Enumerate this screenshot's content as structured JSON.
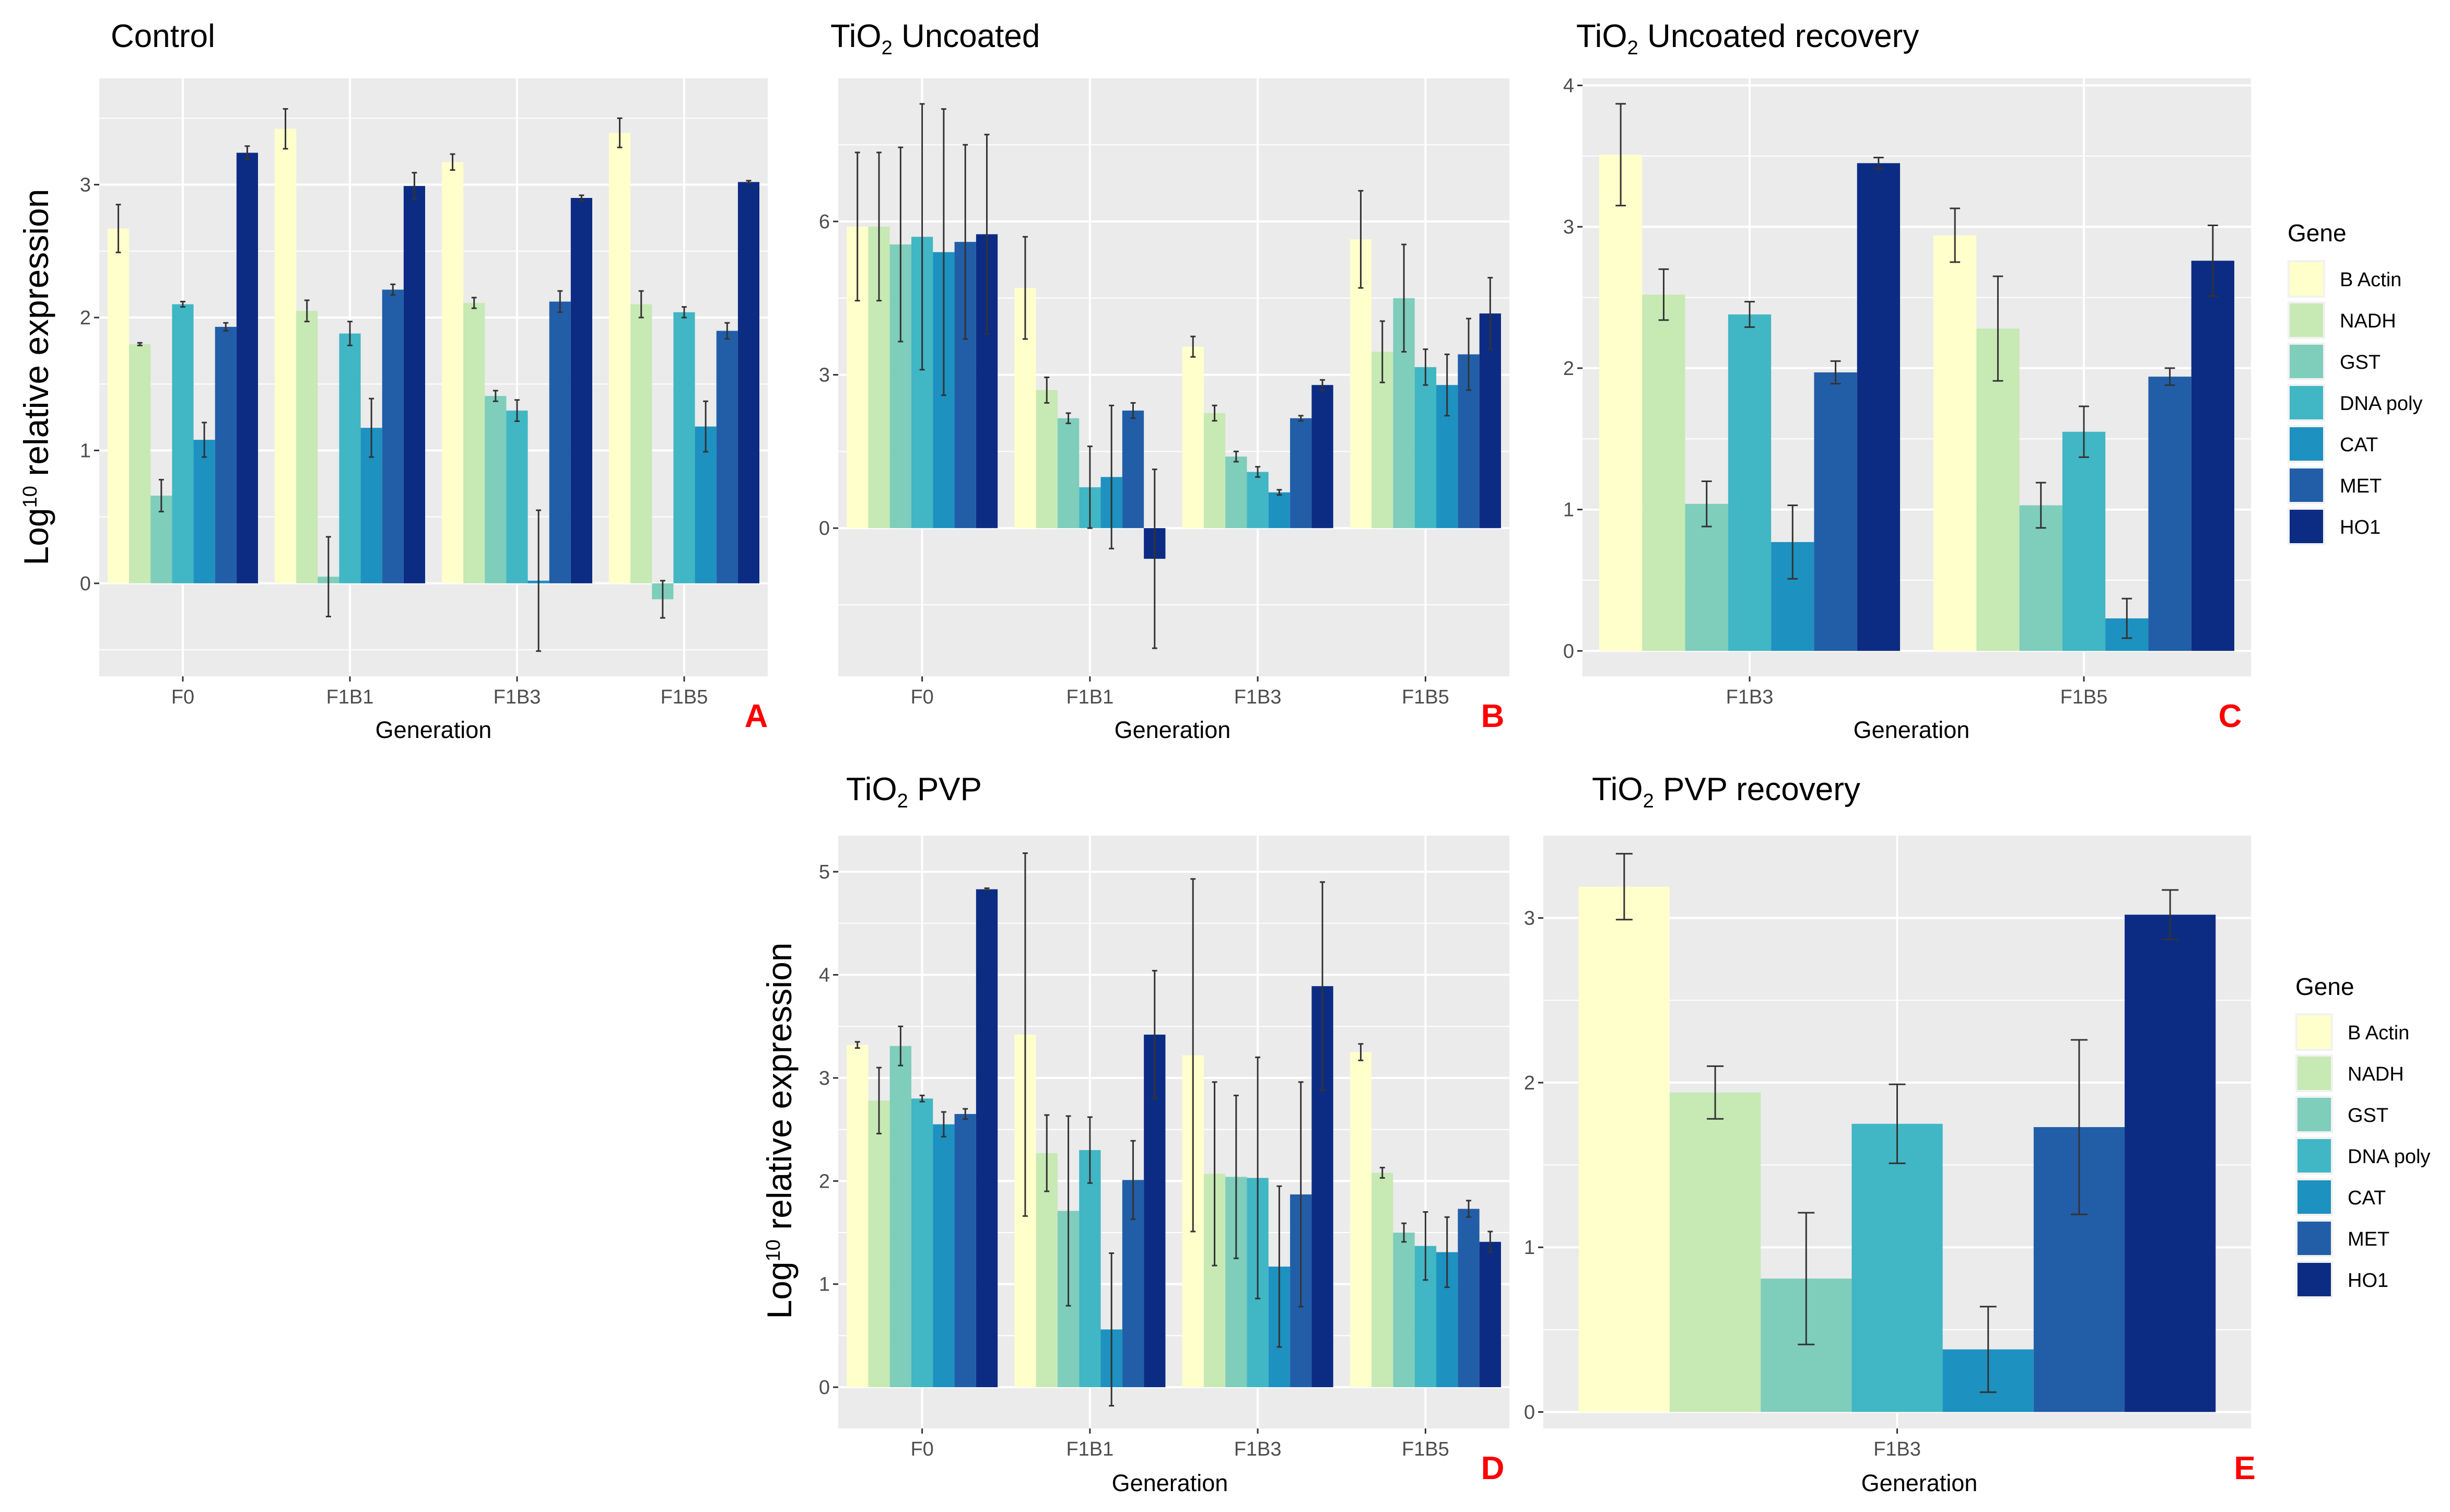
{
  "genes": [
    "B Actin",
    "NADH",
    "GST",
    "DNA poly",
    "CAT",
    "MET",
    "HO1"
  ],
  "gene_colors": [
    "#ffffcc",
    "#c7e9b4",
    "#7fcdbb",
    "#41b6c4",
    "#1d91c0",
    "#225ea8",
    "#0c2c84"
  ],
  "legend_title": "Gene",
  "chart_data": [
    {
      "id": "A",
      "type": "bar",
      "letter": "A",
      "title_parts": [
        "Control"
      ],
      "xlabel": "Generation",
      "ylabel_parts": [
        "Log",
        "10",
        " relative expression"
      ],
      "categories": [
        "F0",
        "F1B1",
        "F1B3",
        "F1B5"
      ],
      "ylim": [
        -0.7,
        3.8
      ],
      "yticks": [
        0,
        1,
        2,
        3
      ],
      "series": [
        {
          "name": "B Actin",
          "values": [
            2.67,
            3.42,
            3.17,
            3.39
          ],
          "errors": [
            0.18,
            0.15,
            0.06,
            0.11
          ]
        },
        {
          "name": "NADH",
          "values": [
            1.8,
            2.05,
            2.11,
            2.1
          ],
          "errors": [
            0.01,
            0.08,
            0.04,
            0.1
          ]
        },
        {
          "name": "GST",
          "values": [
            0.66,
            0.05,
            1.41,
            -0.12
          ],
          "errors": [
            0.12,
            0.3,
            0.04,
            0.14
          ]
        },
        {
          "name": "DNA poly",
          "values": [
            2.1,
            1.88,
            1.3,
            2.04
          ],
          "errors": [
            0.02,
            0.09,
            0.08,
            0.04
          ]
        },
        {
          "name": "CAT",
          "values": [
            1.08,
            1.17,
            0.02,
            1.18
          ],
          "errors": [
            0.13,
            0.22,
            0.53,
            0.19
          ]
        },
        {
          "name": "MET",
          "values": [
            1.93,
            2.21,
            2.12,
            1.9
          ],
          "errors": [
            0.03,
            0.04,
            0.08,
            0.06
          ]
        },
        {
          "name": "HO1",
          "values": [
            3.24,
            2.99,
            2.9,
            3.02
          ],
          "errors": [
            0.05,
            0.1,
            0.02,
            0.01
          ]
        }
      ]
    },
    {
      "id": "B",
      "type": "bar",
      "letter": "B",
      "title_parts": [
        "TiO",
        "2",
        " Uncoated"
      ],
      "xlabel": "Generation",
      "categories": [
        "F0",
        "F1B1",
        "F1B3",
        "F1B5"
      ],
      "ylim": [
        -2.9,
        8.8
      ],
      "yticks": [
        0,
        3,
        6
      ],
      "series": [
        {
          "name": "B Actin",
          "values": [
            5.9,
            4.7,
            3.55,
            5.65
          ],
          "errors": [
            1.45,
            1.0,
            0.2,
            0.95
          ]
        },
        {
          "name": "NADH",
          "values": [
            5.9,
            2.7,
            2.25,
            3.45
          ],
          "errors": [
            1.45,
            0.25,
            0.15,
            0.6
          ]
        },
        {
          "name": "GST",
          "values": [
            5.55,
            2.15,
            1.4,
            4.5
          ],
          "errors": [
            1.9,
            0.1,
            0.1,
            1.05
          ]
        },
        {
          "name": "DNA poly",
          "values": [
            5.7,
            0.8,
            1.1,
            3.15
          ],
          "errors": [
            2.6,
            0.8,
            0.1,
            0.35
          ]
        },
        {
          "name": "CAT",
          "values": [
            5.4,
            1.0,
            0.7,
            2.8
          ],
          "errors": [
            2.8,
            1.4,
            0.05,
            0.6
          ]
        },
        {
          "name": "MET",
          "values": [
            5.6,
            2.3,
            2.15,
            3.4
          ],
          "errors": [
            1.9,
            0.15,
            0.05,
            0.7
          ]
        },
        {
          "name": "HO1",
          "values": [
            5.75,
            -0.6,
            2.8,
            4.2
          ],
          "errors": [
            1.95,
            1.75,
            0.1,
            0.7
          ]
        }
      ]
    },
    {
      "id": "C",
      "type": "bar",
      "letter": "C",
      "title_parts": [
        "TiO",
        "2",
        " Uncoated recovery"
      ],
      "xlabel": "Generation",
      "categories": [
        "F1B3",
        "F1B5"
      ],
      "ylim": [
        -0.18,
        4.05
      ],
      "yticks": [
        0,
        1,
        2,
        3,
        4
      ],
      "series": [
        {
          "name": "B Actin",
          "values": [
            3.51,
            2.94
          ],
          "errors": [
            0.36,
            0.19
          ]
        },
        {
          "name": "NADH",
          "values": [
            2.52,
            2.28
          ],
          "errors": [
            0.18,
            0.37
          ]
        },
        {
          "name": "GST",
          "values": [
            1.04,
            1.03
          ],
          "errors": [
            0.16,
            0.16
          ]
        },
        {
          "name": "DNA poly",
          "values": [
            2.38,
            1.55
          ],
          "errors": [
            0.09,
            0.18
          ]
        },
        {
          "name": "CAT",
          "values": [
            0.77,
            0.23
          ],
          "errors": [
            0.26,
            0.14
          ]
        },
        {
          "name": "MET",
          "values": [
            1.97,
            1.94
          ],
          "errors": [
            0.08,
            0.06
          ]
        },
        {
          "name": "HO1",
          "values": [
            3.45,
            2.76
          ],
          "errors": [
            0.04,
            0.25
          ]
        }
      ]
    },
    {
      "id": "D",
      "type": "bar",
      "letter": "D",
      "title_parts": [
        "TiO",
        "2",
        " PVP"
      ],
      "xlabel": "Generation",
      "ylabel_parts": [
        "Log",
        "10",
        " relative expression"
      ],
      "categories": [
        "F0",
        "F1B1",
        "F1B3",
        "F1B5"
      ],
      "ylim": [
        -0.4,
        5.35
      ],
      "yticks": [
        0,
        1,
        2,
        3,
        4,
        5
      ],
      "series": [
        {
          "name": "B Actin",
          "values": [
            3.32,
            3.42,
            3.22,
            3.25
          ],
          "errors": [
            0.03,
            1.76,
            1.71,
            0.08
          ]
        },
        {
          "name": "NADH",
          "values": [
            2.78,
            2.27,
            2.07,
            2.08
          ],
          "errors": [
            0.32,
            0.37,
            0.89,
            0.05
          ]
        },
        {
          "name": "GST",
          "values": [
            3.31,
            1.71,
            2.04,
            1.5
          ],
          "errors": [
            0.19,
            0.92,
            0.79,
            0.09
          ]
        },
        {
          "name": "DNA poly",
          "values": [
            2.8,
            2.3,
            2.03,
            1.37
          ],
          "errors": [
            0.03,
            0.32,
            1.17,
            0.33
          ]
        },
        {
          "name": "CAT",
          "values": [
            2.55,
            0.56,
            1.17,
            1.31
          ],
          "errors": [
            0.12,
            0.74,
            0.78,
            0.34
          ]
        },
        {
          "name": "MET",
          "values": [
            2.65,
            2.01,
            1.87,
            1.73
          ],
          "errors": [
            0.05,
            0.38,
            1.09,
            0.08
          ]
        },
        {
          "name": "HO1",
          "values": [
            4.83,
            3.42,
            3.89,
            1.41
          ],
          "errors": [
            0.01,
            0.62,
            1.01,
            0.1
          ]
        }
      ]
    },
    {
      "id": "E",
      "type": "bar",
      "letter": "E",
      "title_parts": [
        "TiO",
        "2",
        " PVP recovery"
      ],
      "xlabel": "Generation",
      "categories": [
        "F1B3"
      ],
      "ylim": [
        -0.1,
        3.5
      ],
      "yticks": [
        0,
        1,
        2,
        3
      ],
      "series": [
        {
          "name": "B Actin",
          "values": [
            3.19
          ],
          "errors": [
            0.2
          ]
        },
        {
          "name": "NADH",
          "values": [
            1.94
          ],
          "errors": [
            0.16
          ]
        },
        {
          "name": "GST",
          "values": [
            0.81
          ],
          "errors": [
            0.4
          ]
        },
        {
          "name": "DNA poly",
          "values": [
            1.75
          ],
          "errors": [
            0.24
          ]
        },
        {
          "name": "CAT",
          "values": [
            0.38
          ],
          "errors": [
            0.26
          ]
        },
        {
          "name": "MET",
          "values": [
            1.73
          ],
          "errors": [
            0.53
          ]
        },
        {
          "name": "HO1",
          "values": [
            3.02
          ],
          "errors": [
            0.15
          ]
        }
      ]
    }
  ]
}
